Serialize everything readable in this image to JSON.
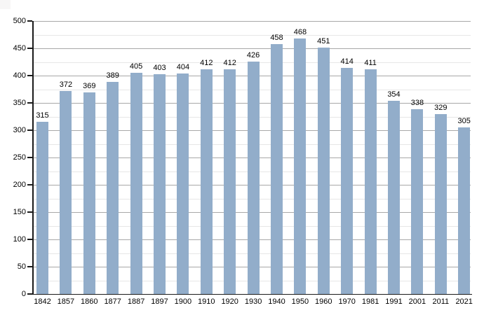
{
  "chart_data": {
    "type": "bar",
    "title": "",
    "xlabel": "",
    "ylabel": "",
    "categories": [
      "1842",
      "1857",
      "1860",
      "1877",
      "1887",
      "1897",
      "1900",
      "1910",
      "1920",
      "1930",
      "1940",
      "1950",
      "1960",
      "1970",
      "1981",
      "1991",
      "2001",
      "2011",
      "2021"
    ],
    "values": [
      315,
      372,
      369,
      389,
      405,
      403,
      404,
      412,
      412,
      426,
      458,
      468,
      451,
      414,
      411,
      354,
      338,
      329,
      305
    ],
    "value_labels_shown": true,
    "ylim": [
      0,
      500
    ],
    "y_major_step": 50,
    "y_minor_step": 25,
    "y_tick_labels": [
      "0",
      "50",
      "100",
      "150",
      "200",
      "250",
      "300",
      "350",
      "400",
      "450",
      "500"
    ],
    "grid": "on",
    "legend_position": "none",
    "colors": {
      "bar_fill": "#92adca",
      "axis": "#1a1a1a",
      "major_grid": "#a8a8a8",
      "minor_grid": "#e7e7e7",
      "label_text": "#000000",
      "background": "#ffffff"
    }
  }
}
